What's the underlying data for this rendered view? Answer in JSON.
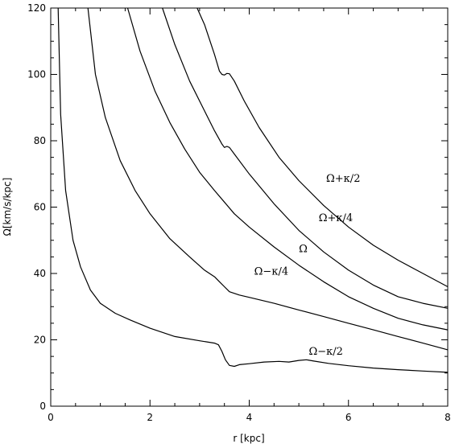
{
  "chart_data": {
    "type": "line",
    "xlabel": "r [kpc]",
    "ylabel": "Ω[km/s/kpc]",
    "xlim": [
      0,
      8
    ],
    "ylim": [
      0,
      120
    ],
    "x_ticks": [
      0,
      2,
      4,
      6,
      8
    ],
    "y_ticks": [
      0,
      20,
      40,
      60,
      80,
      100,
      120
    ],
    "grid": false,
    "series": [
      {
        "name": "Ω−κ/2",
        "label_at": [
          5.2,
          15.5
        ],
        "points": [
          [
            0.15,
            120
          ],
          [
            0.2,
            88
          ],
          [
            0.3,
            65
          ],
          [
            0.45,
            50
          ],
          [
            0.6,
            42
          ],
          [
            0.8,
            35
          ],
          [
            1.0,
            31
          ],
          [
            1.3,
            28
          ],
          [
            1.6,
            26
          ],
          [
            2.0,
            23.5
          ],
          [
            2.5,
            21
          ],
          [
            3.0,
            19.7
          ],
          [
            3.3,
            19
          ],
          [
            3.38,
            18.5
          ],
          [
            3.45,
            16.5
          ],
          [
            3.52,
            14
          ],
          [
            3.6,
            12.3
          ],
          [
            3.7,
            12
          ],
          [
            3.8,
            12.5
          ],
          [
            4.0,
            12.8
          ],
          [
            4.3,
            13.3
          ],
          [
            4.6,
            13.5
          ],
          [
            4.8,
            13.3
          ],
          [
            5.0,
            13.8
          ],
          [
            5.15,
            14
          ],
          [
            5.3,
            13.6
          ],
          [
            5.6,
            12.9
          ],
          [
            6.0,
            12.2
          ],
          [
            6.5,
            11.5
          ],
          [
            7.0,
            11.0
          ],
          [
            7.5,
            10.6
          ],
          [
            8.0,
            10.2
          ]
        ]
      },
      {
        "name": "Ω−κ/4",
        "label_at": [
          4.1,
          39.6
        ],
        "points": [
          [
            0.75,
            120
          ],
          [
            0.9,
            100
          ],
          [
            1.1,
            87
          ],
          [
            1.4,
            74
          ],
          [
            1.7,
            65
          ],
          [
            2.0,
            58
          ],
          [
            2.4,
            50.5
          ],
          [
            2.8,
            45
          ],
          [
            3.1,
            41
          ],
          [
            3.3,
            39
          ],
          [
            3.4,
            37.5
          ],
          [
            3.5,
            36
          ],
          [
            3.6,
            34.5
          ],
          [
            3.8,
            33.5
          ],
          [
            4.0,
            32.8
          ],
          [
            4.5,
            31
          ],
          [
            5.0,
            29
          ],
          [
            5.5,
            27
          ],
          [
            6.0,
            25
          ],
          [
            6.5,
            23
          ],
          [
            7.0,
            21
          ],
          [
            7.5,
            19
          ],
          [
            8.0,
            17
          ]
        ]
      },
      {
        "name": "Ω",
        "label_at": [
          5.0,
          46.4
        ],
        "points": [
          [
            1.55,
            120
          ],
          [
            1.8,
            107
          ],
          [
            2.1,
            95
          ],
          [
            2.4,
            85.5
          ],
          [
            2.7,
            77.5
          ],
          [
            3.0,
            70.5
          ],
          [
            3.3,
            65
          ],
          [
            3.5,
            61.5
          ],
          [
            3.7,
            58
          ],
          [
            4.0,
            54
          ],
          [
            4.5,
            48
          ],
          [
            5.0,
            42.5
          ],
          [
            5.5,
            37.5
          ],
          [
            6.0,
            33
          ],
          [
            6.5,
            29.5
          ],
          [
            7.0,
            26.5
          ],
          [
            7.5,
            24.5
          ],
          [
            8.0,
            23
          ]
        ]
      },
      {
        "name": "Ω+κ/4",
        "label_at": [
          5.4,
          55.8
        ],
        "points": [
          [
            2.25,
            120
          ],
          [
            2.5,
            109
          ],
          [
            2.8,
            98
          ],
          [
            3.1,
            89
          ],
          [
            3.3,
            83
          ],
          [
            3.45,
            79
          ],
          [
            3.5,
            78
          ],
          [
            3.55,
            78.3
          ],
          [
            3.6,
            78
          ],
          [
            3.7,
            76
          ],
          [
            4.0,
            70
          ],
          [
            4.5,
            61
          ],
          [
            5.0,
            53
          ],
          [
            5.5,
            46.5
          ],
          [
            6.0,
            41
          ],
          [
            6.5,
            36.5
          ],
          [
            7.0,
            33
          ],
          [
            7.5,
            31
          ],
          [
            8.0,
            29.5
          ]
        ]
      },
      {
        "name": "Ω+κ/2",
        "label_at": [
          5.55,
          67.6
        ],
        "points": [
          [
            2.95,
            120
          ],
          [
            3.1,
            115
          ],
          [
            3.3,
            106
          ],
          [
            3.4,
            101
          ],
          [
            3.45,
            100
          ],
          [
            3.5,
            99.8
          ],
          [
            3.55,
            100.3
          ],
          [
            3.6,
            100.2
          ],
          [
            3.7,
            98
          ],
          [
            3.9,
            92
          ],
          [
            4.2,
            84
          ],
          [
            4.6,
            75
          ],
          [
            5.0,
            68
          ],
          [
            5.5,
            60.5
          ],
          [
            6.0,
            54
          ],
          [
            6.5,
            48.5
          ],
          [
            7.0,
            44
          ],
          [
            7.5,
            40
          ],
          [
            8.0,
            36
          ]
        ]
      }
    ]
  }
}
